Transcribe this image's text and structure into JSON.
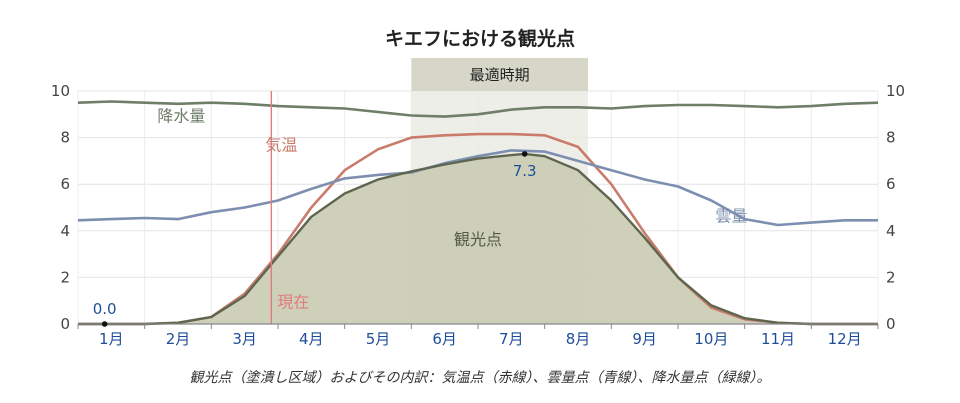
{
  "chart_data": {
    "type": "area",
    "title": "キエフにおける観光点",
    "caption": "観光点（塗潰し区域）およびその内訳：気温点（赤線）、雲量点（青線）、降水量点（緑線）。",
    "categories": [
      "1月",
      "2月",
      "3月",
      "4月",
      "5月",
      "6月",
      "7月",
      "8月",
      "9月",
      "10月",
      "11月",
      "12月"
    ],
    "x_range": [
      1,
      13
    ],
    "ylim": [
      0,
      10
    ],
    "y_ticks": [
      0,
      2,
      4,
      6,
      8,
      10
    ],
    "grid": true,
    "best_period": {
      "label": "最適時期",
      "start": 6.0,
      "end": 8.65
    },
    "today_marker": {
      "label": "現在",
      "x": 3.9
    },
    "series": [
      {
        "name": "観光点",
        "role": "filled",
        "color": "#5f6650",
        "fill": "#c9cbb3",
        "points": [
          [
            1.0,
            0
          ],
          [
            2.0,
            0
          ],
          [
            2.5,
            0.05
          ],
          [
            3.0,
            0.3
          ],
          [
            3.5,
            1.2
          ],
          [
            4.0,
            2.9
          ],
          [
            4.5,
            4.6
          ],
          [
            5.0,
            5.6
          ],
          [
            5.5,
            6.2
          ],
          [
            6.0,
            6.55
          ],
          [
            6.5,
            6.85
          ],
          [
            7.0,
            7.1
          ],
          [
            7.5,
            7.25
          ],
          [
            7.7,
            7.3
          ],
          [
            8.0,
            7.2
          ],
          [
            8.5,
            6.6
          ],
          [
            9.0,
            5.3
          ],
          [
            9.5,
            3.7
          ],
          [
            10.0,
            2.0
          ],
          [
            10.5,
            0.8
          ],
          [
            11.0,
            0.25
          ],
          [
            11.5,
            0.05
          ],
          [
            12.0,
            0
          ],
          [
            13.0,
            0
          ]
        ]
      },
      {
        "name": "気温",
        "role": "line",
        "color": "#c97c6b",
        "points": [
          [
            1.0,
            0
          ],
          [
            2.0,
            0
          ],
          [
            2.5,
            0.05
          ],
          [
            3.0,
            0.3
          ],
          [
            3.5,
            1.3
          ],
          [
            4.0,
            3.0
          ],
          [
            4.5,
            5.0
          ],
          [
            5.0,
            6.6
          ],
          [
            5.5,
            7.5
          ],
          [
            6.0,
            8.0
          ],
          [
            6.5,
            8.1
          ],
          [
            7.0,
            8.15
          ],
          [
            7.5,
            8.15
          ],
          [
            8.0,
            8.1
          ],
          [
            8.5,
            7.6
          ],
          [
            9.0,
            6.0
          ],
          [
            9.5,
            3.9
          ],
          [
            10.0,
            2.0
          ],
          [
            10.5,
            0.7
          ],
          [
            11.0,
            0.2
          ],
          [
            11.5,
            0.05
          ],
          [
            12.0,
            0
          ],
          [
            13.0,
            0
          ]
        ]
      },
      {
        "name": "雲量",
        "role": "line",
        "color": "#7d8fb0",
        "points": [
          [
            1.0,
            4.45
          ],
          [
            1.5,
            4.5
          ],
          [
            2.0,
            4.55
          ],
          [
            2.5,
            4.5
          ],
          [
            3.0,
            4.8
          ],
          [
            3.5,
            5.0
          ],
          [
            4.0,
            5.3
          ],
          [
            4.5,
            5.8
          ],
          [
            5.0,
            6.25
          ],
          [
            5.5,
            6.4
          ],
          [
            6.0,
            6.5
          ],
          [
            6.5,
            6.9
          ],
          [
            7.0,
            7.2
          ],
          [
            7.5,
            7.45
          ],
          [
            8.0,
            7.4
          ],
          [
            8.5,
            7.0
          ],
          [
            9.0,
            6.6
          ],
          [
            9.5,
            6.2
          ],
          [
            10.0,
            5.9
          ],
          [
            10.5,
            5.3
          ],
          [
            11.0,
            4.5
          ],
          [
            11.5,
            4.25
          ],
          [
            12.0,
            4.35
          ],
          [
            12.5,
            4.45
          ],
          [
            13.0,
            4.45
          ]
        ]
      },
      {
        "name": "降水量",
        "role": "line",
        "color": "#6e7e68",
        "points": [
          [
            1.0,
            9.5
          ],
          [
            1.5,
            9.55
          ],
          [
            2.0,
            9.5
          ],
          [
            2.5,
            9.45
          ],
          [
            3.0,
            9.5
          ],
          [
            3.5,
            9.45
          ],
          [
            4.0,
            9.35
          ],
          [
            4.5,
            9.3
          ],
          [
            5.0,
            9.25
          ],
          [
            5.5,
            9.1
          ],
          [
            6.0,
            8.95
          ],
          [
            6.5,
            8.9
          ],
          [
            7.0,
            9.0
          ],
          [
            7.5,
            9.2
          ],
          [
            8.0,
            9.3
          ],
          [
            8.5,
            9.3
          ],
          [
            9.0,
            9.25
          ],
          [
            9.5,
            9.35
          ],
          [
            10.0,
            9.4
          ],
          [
            10.5,
            9.4
          ],
          [
            11.0,
            9.35
          ],
          [
            11.5,
            9.3
          ],
          [
            12.0,
            9.35
          ],
          [
            12.5,
            9.45
          ],
          [
            13.0,
            9.5
          ]
        ]
      }
    ],
    "annotations": [
      {
        "text": "7.3",
        "x": 7.7,
        "y": 7.3,
        "type": "point"
      },
      {
        "text": "0.0",
        "x": 1.4,
        "y": 0,
        "type": "point"
      }
    ]
  }
}
